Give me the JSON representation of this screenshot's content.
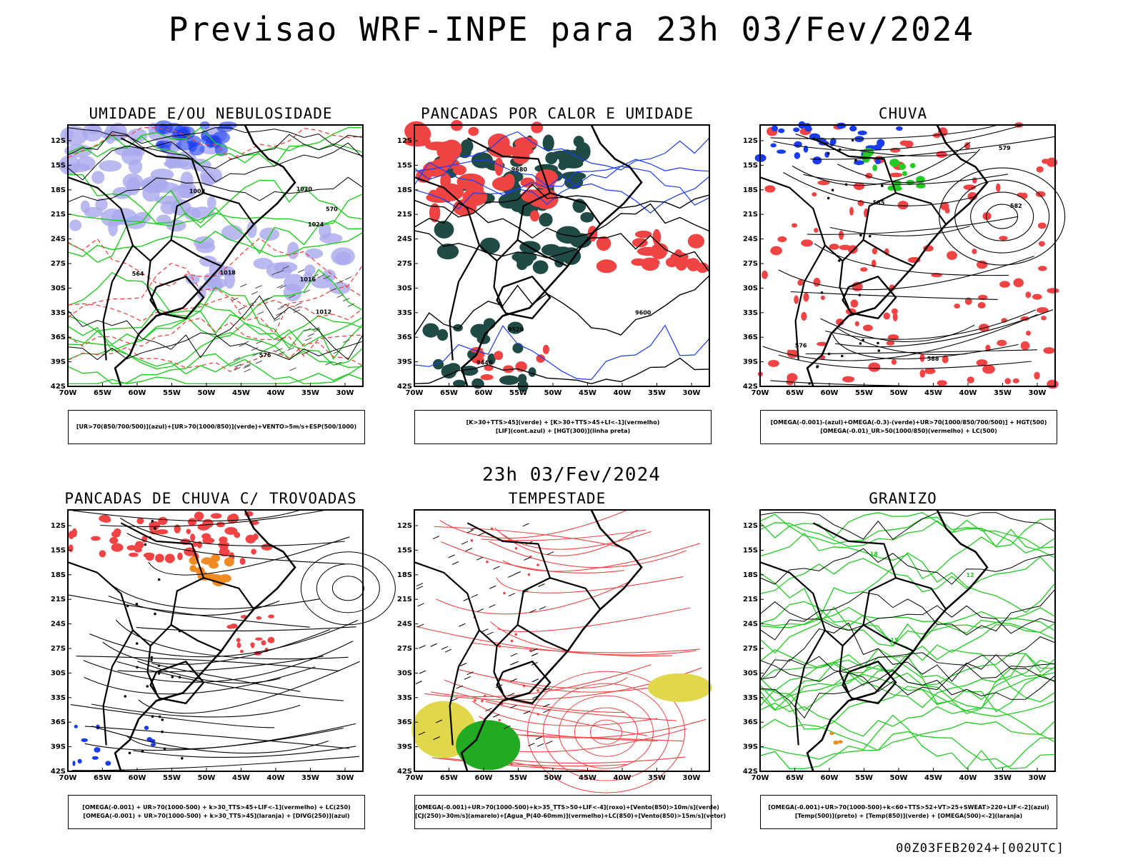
{
  "header": {
    "title": "Previsao WRF-INPE  para 23h 03/Fev/2024"
  },
  "separator": {
    "subtitle": "23h 03/Fev/2024"
  },
  "footer": {
    "run": "00Z03FEB2024+[002UTC]"
  },
  "axes": {
    "lat_ticks": [
      "12S",
      "15S",
      "18S",
      "21S",
      "24S",
      "27S",
      "30S",
      "33S",
      "36S",
      "39S",
      "42S"
    ],
    "lon_ticks": [
      "70W",
      "65W",
      "60W",
      "55W",
      "50W",
      "45W",
      "40W",
      "35W",
      "30W"
    ]
  },
  "colors": {
    "blue": "#1a3cf0",
    "lavender": "#a9a9ee",
    "green": "#22cc22",
    "red": "#f04444",
    "dark_teal": "#1f4a46",
    "orange": "#f08a22",
    "yellow": "#e0d84a",
    "black": "#000000"
  },
  "panels": [
    {
      "title": "UMIDADE E/OU NEBULOSIDADE",
      "legend": [
        "[UR>70(850/700/500)](azul)+[UR>70(1000/850)](verde)+VENTO>5m/s+ESP(500/1000)"
      ],
      "labels": [
        "1012",
        "1016",
        "1020",
        "1024",
        "1008",
        "576",
        "570",
        "564",
        "1018"
      ]
    },
    {
      "title": "PANCADAS POR CALOR E UMIDADE",
      "legend": [
        "[K>30+TTS>45](verde) + [K>30+TTS>45+LI<-1](vermelho)",
        "[LIF](cont.azul) + [HGT(300)](linha preta)"
      ],
      "labels": [
        "9680",
        "9600",
        "9520",
        "9440"
      ]
    },
    {
      "title": "CHUVA",
      "legend": [
        "[OMEGA(-0.001)-(azul)+OMEGA(-0.3)-(verde)+UR>70(1000/850/700/500)] + HGT(500)",
        "[OMEGA(-0.01)_UR>50(1000/850)(vermelho) + LC(500)"
      ],
      "labels": [
        "588",
        "585",
        "582",
        "579",
        "576"
      ]
    },
    {
      "title": "PANCADAS DE CHUVA C/ TROVOADAS",
      "legend": [
        "[OMEGA(-0.001) + UR>70(1000-500) + k>30_TTS>45+LIF<-1](vermelho) + LC(250)",
        "[OMEGA(-0.001) + UR>70(1000-500) + k>30_TTS>45](laranja) + [DIVG(250)](azul)"
      ],
      "labels": []
    },
    {
      "title": "TEMPESTADE",
      "legend": [
        "[OMEGA(-0.001)+UR>70(1000-500)+k>35_TTS>50+LIF<-4](roxo)+[Vento(850)>10m/s](verde)",
        "[CJ(250)>30m/s](amarelo)+[Agua_P(40-60mm)](vermelho)+LC(850)+[Vento(850)>15m/s](vetor)"
      ],
      "labels": []
    },
    {
      "title": "GRANIZO",
      "legend": [
        "[OMEGA(-0.001)+UR>70(1000-500)+k<60+TTS>52+VT>25+SWEAT>220+LIF<-2](azul)",
        "[Temp(500)](preto) + [Temp(850)](verde) + [OMEGA(500)<-2](laranja)"
      ],
      "labels": [
        "12",
        "15",
        "18"
      ]
    }
  ]
}
